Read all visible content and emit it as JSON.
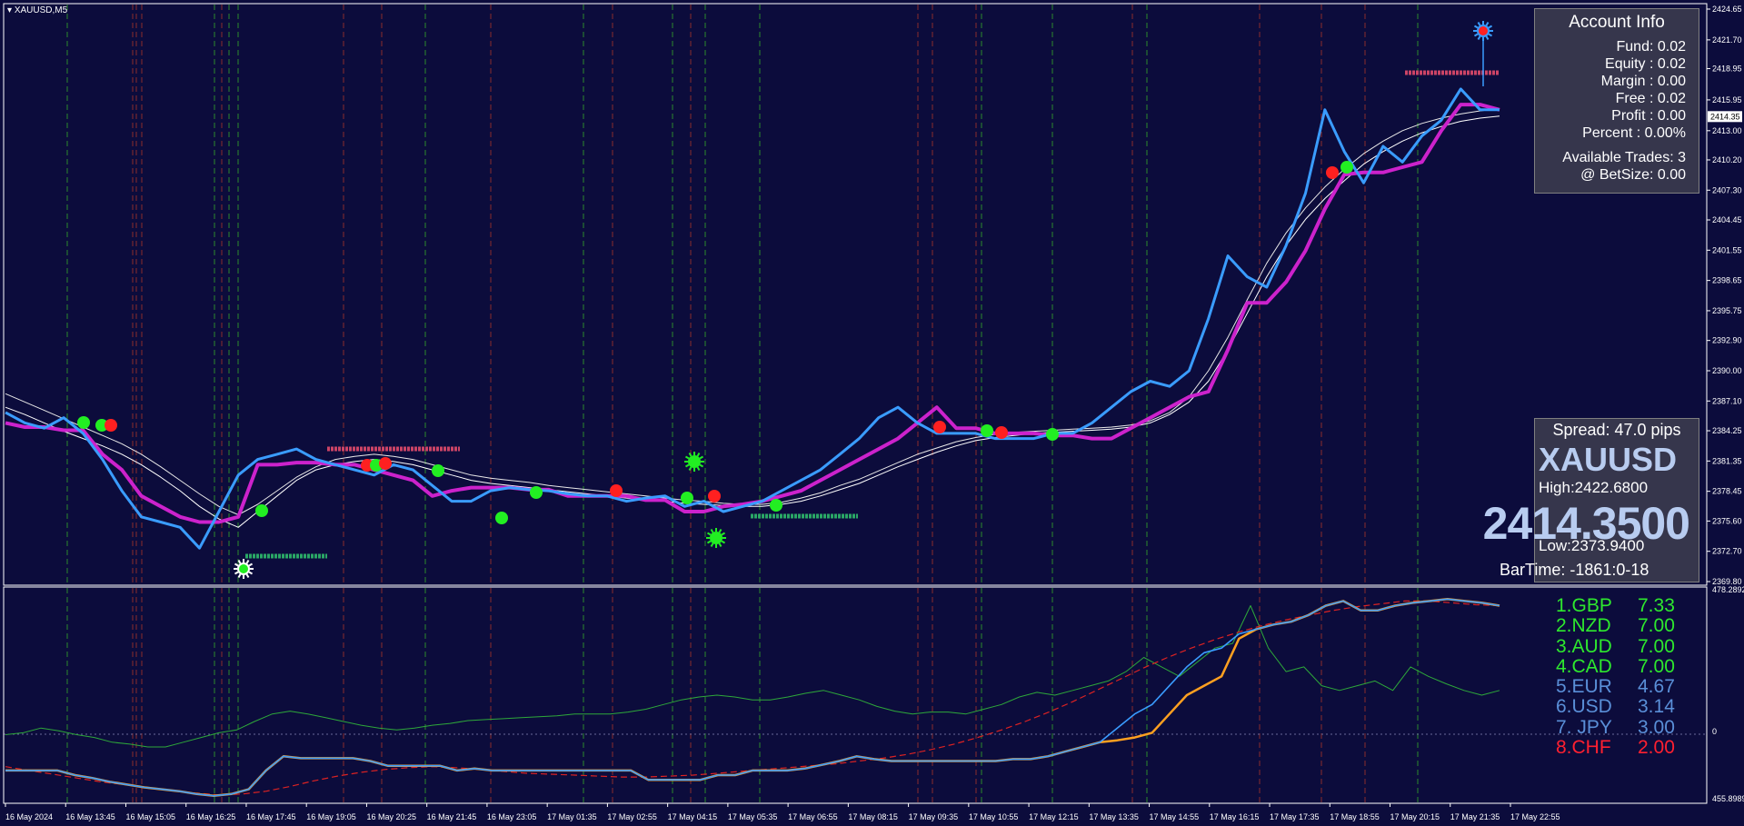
{
  "chart_label": "XAUUSD,M5",
  "account": {
    "title": "Account Info",
    "rows": [
      "Fund: 0.02",
      "Equity : 0.02",
      "Margin : 0.00",
      "Free : 0.02",
      "Profit : 0.00",
      "Percent : 0.00%"
    ],
    "trades": [
      "Available Trades: 3",
      "@ BetSize: 0.00"
    ]
  },
  "quote": {
    "spread": "Spread: 47.0 pips",
    "symbol": "XAUUSD",
    "high": "High:2422.6800",
    "bid": "2414.3500",
    "low": "Low:2373.9400",
    "bartime": "BarTime: -1861:0-18"
  },
  "currency_strength": [
    {
      "label": "1.GBP",
      "value": "7.33",
      "color": "#2ee82e"
    },
    {
      "label": "2.NZD",
      "value": "7.00",
      "color": "#2ee82e"
    },
    {
      "label": "3.AUD",
      "value": "7.00",
      "color": "#2ee82e"
    },
    {
      "label": "4.CAD",
      "value": "7.00",
      "color": "#2ee82e"
    },
    {
      "label": "5.EUR",
      "value": "4.67",
      "color": "#5a8fd8"
    },
    {
      "label": "6.USD",
      "value": "3.14",
      "color": "#5a8fd8"
    },
    {
      "label": "7. JPY",
      "value": "3.00",
      "color": "#5a8fd8"
    },
    {
      "label": "8.CHF",
      "value": "2.00",
      "color": "#ff2030"
    }
  ],
  "chart_data": [
    {
      "type": "line",
      "symbol": "XAUUSD",
      "timeframe": "M5",
      "ylim": [
        2369.8,
        2424.65
      ],
      "price_ticks": [
        "2424.65",
        "2421.70",
        "2418.95",
        "2415.95",
        "2413.00",
        "2410.20",
        "2407.30",
        "2404.45",
        "2401.55",
        "2398.65",
        "2395.75",
        "2392.90",
        "2390.00",
        "2387.10",
        "2384.25",
        "2381.35",
        "2378.45",
        "2375.60",
        "2372.70",
        "2369.80"
      ],
      "current_price_label": "2414.35",
      "x_ticks": [
        "16 May 2024",
        "16 May 13:45",
        "16 May 15:05",
        "16 May 16:25",
        "16 May 17:45",
        "16 May 19:05",
        "16 May 20:25",
        "16 May 21:45",
        "16 May 23:05",
        "17 May 01:35",
        "17 May 02:55",
        "17 May 04:15",
        "17 May 05:35",
        "17 May 06:55",
        "17 May 08:15",
        "17 May 09:35",
        "17 May 10:55",
        "17 May 12:15",
        "17 May 13:35",
        "17 May 14:55",
        "17 May 16:15",
        "17 May 17:35",
        "17 May 18:55",
        "17 May 20:15",
        "17 May 21:35",
        "17 May 22:55"
      ],
      "series": [
        {
          "name": "",
          "color": "#ffffff",
          "values": [
            2386.5,
            2385.8,
            2385.0,
            2384.2,
            2383.5,
            2382.8,
            2382.0,
            2381.0,
            2379.8,
            2378.5,
            2377.0,
            2375.8,
            2375.0,
            2376.5,
            2378.0,
            2379.5,
            2380.5,
            2381.0,
            2381.3,
            2381.5,
            2381.3,
            2381.0,
            2380.5,
            2380.0,
            2379.5,
            2379.2,
            2379.0,
            2378.8,
            2378.6,
            2378.4,
            2378.2,
            2378.0,
            2377.8,
            2377.6,
            2377.5,
            2377.3,
            2377.2,
            2377.1,
            2377.0,
            2377.0,
            2377.2,
            2377.5,
            2378.0,
            2378.6,
            2379.2,
            2380.0,
            2380.8,
            2381.5,
            2382.2,
            2382.8,
            2383.3,
            2383.6,
            2383.8,
            2384.0,
            2384.1,
            2384.2,
            2384.3,
            2384.4,
            2384.6,
            2385.0,
            2385.8,
            2387.0,
            2389.0,
            2392.0,
            2395.5,
            2399.0,
            2402.0,
            2404.5,
            2406.5,
            2408.2,
            2409.8,
            2411.0,
            2412.0,
            2412.8,
            2413.4,
            2413.9,
            2414.2,
            2414.4
          ]
        },
        {
          "name": "",
          "color": "#e8e8e8",
          "values": [
            2387.8,
            2387.0,
            2386.2,
            2385.4,
            2384.6,
            2383.8,
            2383.0,
            2382.0,
            2380.8,
            2379.5,
            2378.2,
            2377.0,
            2376.2,
            2377.2,
            2378.5,
            2379.8,
            2380.8,
            2381.5,
            2381.8,
            2382.0,
            2381.8,
            2381.5,
            2381.0,
            2380.5,
            2380.0,
            2379.7,
            2379.5,
            2379.3,
            2379.0,
            2378.8,
            2378.6,
            2378.4,
            2378.2,
            2378.0,
            2377.8,
            2377.6,
            2377.5,
            2377.3,
            2377.2,
            2377.2,
            2377.4,
            2377.8,
            2378.3,
            2379.0,
            2379.6,
            2380.4,
            2381.2,
            2382.0,
            2382.6,
            2383.2,
            2383.6,
            2383.9,
            2384.1,
            2384.2,
            2384.3,
            2384.4,
            2384.5,
            2384.6,
            2384.8,
            2385.2,
            2386.0,
            2387.5,
            2390.0,
            2393.2,
            2396.8,
            2400.3,
            2403.2,
            2405.6,
            2407.6,
            2409.3,
            2410.8,
            2412.0,
            2413.0,
            2413.7,
            2414.2,
            2414.6,
            2414.9,
            2415.1
          ]
        },
        {
          "name": "",
          "color": "#cc22cc",
          "values": [
            2385.0,
            2384.6,
            2384.6,
            2384.3,
            2384.3,
            2382.0,
            2380.5,
            2378.0,
            2377.0,
            2376.0,
            2375.5,
            2375.5,
            2376.0,
            2381.0,
            2381.0,
            2381.2,
            2381.2,
            2381.0,
            2381.0,
            2380.5,
            2380.0,
            2379.5,
            2378.0,
            2378.5,
            2378.8,
            2378.8,
            2378.8,
            2378.6,
            2378.6,
            2378.0,
            2378.0,
            2378.0,
            2378.0,
            2377.6,
            2377.6,
            2376.5,
            2376.5,
            2377.0,
            2377.2,
            2377.5,
            2378.0,
            2378.5,
            2379.5,
            2380.5,
            2381.5,
            2382.5,
            2383.5,
            2385.0,
            2386.5,
            2384.5,
            2384.5,
            2384.0,
            2384.0,
            2384.0,
            2383.8,
            2383.8,
            2383.5,
            2383.5,
            2384.5,
            2385.5,
            2386.5,
            2387.5,
            2388.0,
            2392.0,
            2396.5,
            2396.5,
            2398.5,
            2401.5,
            2405.5,
            2408.8,
            2409.0,
            2409.0,
            2409.5,
            2410.0,
            2413.0,
            2415.5,
            2415.5,
            2415.0
          ]
        },
        {
          "name": "",
          "color": "#3a9cff",
          "values": [
            2386.0,
            2385.0,
            2384.5,
            2385.5,
            2384.0,
            2381.5,
            2378.5,
            2376.0,
            2375.5,
            2375.0,
            2373.0,
            2376.5,
            2380.0,
            2381.5,
            2382.0,
            2382.5,
            2381.5,
            2381.0,
            2380.5,
            2380.0,
            2381.0,
            2380.5,
            2379.0,
            2377.5,
            2377.5,
            2378.5,
            2378.8,
            2378.6,
            2378.5,
            2378.2,
            2378.0,
            2378.0,
            2377.5,
            2377.8,
            2378.0,
            2377.0,
            2377.5,
            2376.5,
            2377.0,
            2377.5,
            2378.5,
            2379.5,
            2380.5,
            2382.0,
            2383.5,
            2385.5,
            2386.5,
            2385.0,
            2384.0,
            2384.0,
            2384.0,
            2383.5,
            2383.5,
            2383.5,
            2384.0,
            2384.0,
            2385.0,
            2386.5,
            2388.0,
            2389.0,
            2388.5,
            2390.0,
            2395.0,
            2401.0,
            2399.0,
            2398.0,
            2402.0,
            2407.0,
            2415.0,
            2411.0,
            2408.0,
            2411.5,
            2410.0,
            2412.5,
            2414.0,
            2417.0,
            2415.0,
            2415.0
          ]
        }
      ]
    },
    {
      "type": "line",
      "ylim": [
        455.8989,
        478.2892
      ],
      "y_ticks": [
        "478.2892",
        "0",
        "455.8989"
      ],
      "series": [
        {
          "name": "",
          "color": "#2ea83a",
          "values": [
            462.8,
            463.0,
            463.5,
            463.2,
            462.8,
            462.5,
            462.0,
            461.8,
            461.5,
            461.5,
            462.0,
            462.5,
            463.0,
            463.3,
            464.2,
            465.0,
            465.3,
            465.0,
            464.6,
            464.2,
            463.8,
            463.5,
            463.3,
            463.5,
            463.8,
            464.0,
            464.3,
            464.4,
            464.5,
            464.6,
            464.7,
            464.8,
            465.0,
            465.0,
            465.0,
            465.2,
            465.5,
            466.0,
            466.5,
            466.8,
            467.0,
            466.8,
            466.5,
            466.5,
            466.8,
            467.2,
            467.5,
            467.0,
            466.5,
            465.8,
            465.3,
            465.0,
            465.2,
            465.2,
            465.0,
            465.5,
            466.0,
            466.8,
            467.3,
            467.0,
            467.5,
            468.0,
            468.5,
            469.5,
            471.0,
            470.0,
            469.0,
            470.5,
            472.0,
            472.5,
            476.5,
            472.0,
            469.5,
            470.0,
            468.0,
            467.5,
            468.0,
            468.5,
            467.5,
            470.0,
            469.0,
            468.2,
            467.5,
            467.0,
            467.5
          ]
        },
        {
          "name": "",
          "color": "#ffa020",
          "values": [
            459.0,
            459.0,
            459.0,
            459.0,
            458.5,
            458.2,
            457.8,
            457.5,
            457.2,
            457.0,
            456.8,
            456.5,
            456.3,
            456.5,
            457.0,
            459.0,
            460.5,
            460.3,
            460.3,
            460.3,
            460.3,
            460.0,
            459.5,
            459.5,
            459.5,
            459.5,
            459.0,
            459.2,
            459.0,
            459.0,
            459.0,
            459.0,
            459.0,
            459.0,
            459.0,
            459.0,
            459.0,
            458.0,
            458.0,
            458.0,
            458.0,
            458.5,
            458.5,
            459.0,
            459.0,
            459.0,
            459.2,
            459.6,
            460.0,
            460.5,
            460.2,
            460.0,
            460.0,
            460.0,
            460.0,
            460.0,
            460.0,
            460.0,
            460.2,
            460.2,
            460.5,
            461.0,
            461.5,
            462.0,
            462.2,
            462.5,
            463.0,
            465.0,
            467.0,
            468.0,
            469.0,
            473.0,
            474.0,
            474.5,
            474.8,
            475.5,
            476.5,
            477.0,
            476.0,
            476.0,
            476.5,
            476.8,
            477.0,
            477.2,
            477.0,
            476.8,
            476.5
          ]
        },
        {
          "name": "",
          "color": "#3a9cff",
          "values": [
            459.0,
            459.0,
            459.0,
            459.0,
            458.5,
            458.2,
            457.8,
            457.5,
            457.2,
            457.0,
            456.8,
            456.5,
            456.3,
            456.5,
            457.0,
            459.0,
            460.5,
            460.3,
            460.3,
            460.3,
            460.3,
            460.0,
            459.5,
            459.5,
            459.5,
            459.5,
            459.0,
            459.2,
            459.0,
            459.0,
            459.0,
            459.0,
            459.0,
            459.0,
            459.0,
            459.0,
            459.0,
            458.0,
            458.0,
            458.0,
            458.0,
            458.5,
            458.5,
            459.0,
            459.0,
            459.0,
            459.2,
            459.6,
            460.0,
            460.5,
            460.2,
            460.0,
            460.0,
            460.0,
            460.0,
            460.0,
            460.0,
            460.0,
            460.2,
            460.2,
            460.5,
            461.0,
            461.5,
            462.0,
            463.5,
            465.0,
            466.0,
            468.0,
            470.0,
            471.5,
            472.0,
            473.5,
            474.0,
            474.5,
            474.8,
            475.5,
            476.5,
            477.0,
            476.0,
            476.0,
            476.5,
            476.8,
            477.0,
            477.2,
            477.0,
            476.8,
            476.5
          ]
        },
        {
          "name": "",
          "color": "#dd2222",
          "values": [
            459.4,
            459.0,
            458.6,
            458.2,
            457.8,
            457.5,
            457.2,
            456.9,
            456.6,
            456.4,
            456.5,
            456.8,
            457.3,
            457.9,
            458.4,
            458.8,
            459.1,
            459.3,
            459.4,
            459.3,
            459.1,
            458.9,
            458.7,
            458.6,
            458.5,
            458.4,
            458.3,
            458.3,
            458.4,
            458.5,
            458.7,
            458.9,
            459.1,
            459.3,
            459.5,
            459.7,
            460.0,
            460.3,
            460.7,
            461.2,
            461.8,
            462.5,
            463.3,
            464.2,
            465.2,
            466.3,
            467.5,
            468.7,
            469.9,
            471.0,
            472.0,
            472.9,
            473.7,
            474.4,
            475.0,
            475.5,
            476.0,
            476.4,
            476.7,
            477.0,
            477.0,
            476.8,
            476.6,
            476.5
          ]
        }
      ]
    }
  ]
}
